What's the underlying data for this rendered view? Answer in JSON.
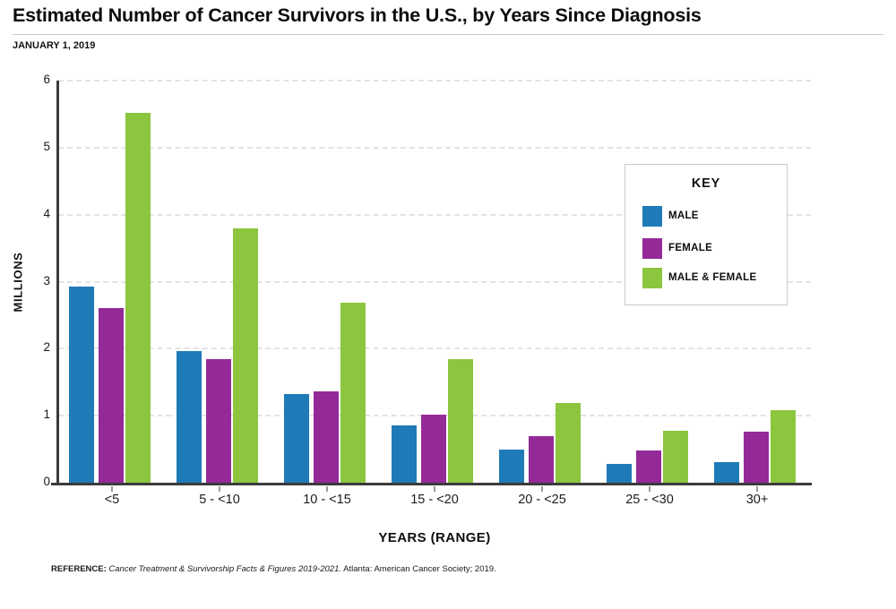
{
  "header": {
    "title": "Estimated Number of Cancer Survivors in the U.S., by Years Since Diagnosis",
    "subtitle": "JANUARY 1, 2019"
  },
  "chart_data": {
    "type": "bar",
    "title": "Estimated Number of Cancer Survivors in the U.S., by Years Since Diagnosis",
    "subtitle": "JANUARY 1, 2019",
    "categories": [
      "<5",
      "5 - <10",
      "10 - <15",
      "15 - <20",
      "20 - <25",
      "25 - <30",
      "30+"
    ],
    "series": [
      {
        "name": "MALE",
        "color": "#1F7AB8",
        "values": [
          2.92,
          1.96,
          1.32,
          0.85,
          0.49,
          0.28,
          0.31
        ]
      },
      {
        "name": "FEMALE",
        "color": "#942A98",
        "values": [
          2.6,
          1.84,
          1.36,
          1.01,
          0.7,
          0.48,
          0.76
        ]
      },
      {
        "name": "MALE & FEMALE",
        "color": "#8BC63E",
        "values": [
          5.52,
          3.8,
          2.68,
          1.85,
          1.19,
          0.77,
          1.08
        ]
      }
    ],
    "xlabel": "YEARS (RANGE)",
    "ylabel": "MILLIONS",
    "ylim": [
      0,
      6
    ],
    "yticks": [
      0,
      1,
      2,
      3,
      4,
      5,
      6
    ],
    "grid": "horizontal-dashed",
    "legend_title": "KEY",
    "legend_position": "upper-right"
  },
  "footer": {
    "reference_label": "REFERENCE:",
    "reference_citation": " Cancer Treatment & Survivorship Facts & Figures 2019-2021.",
    "reference_tail": " Atlanta: American Cancer Society; 2019."
  }
}
